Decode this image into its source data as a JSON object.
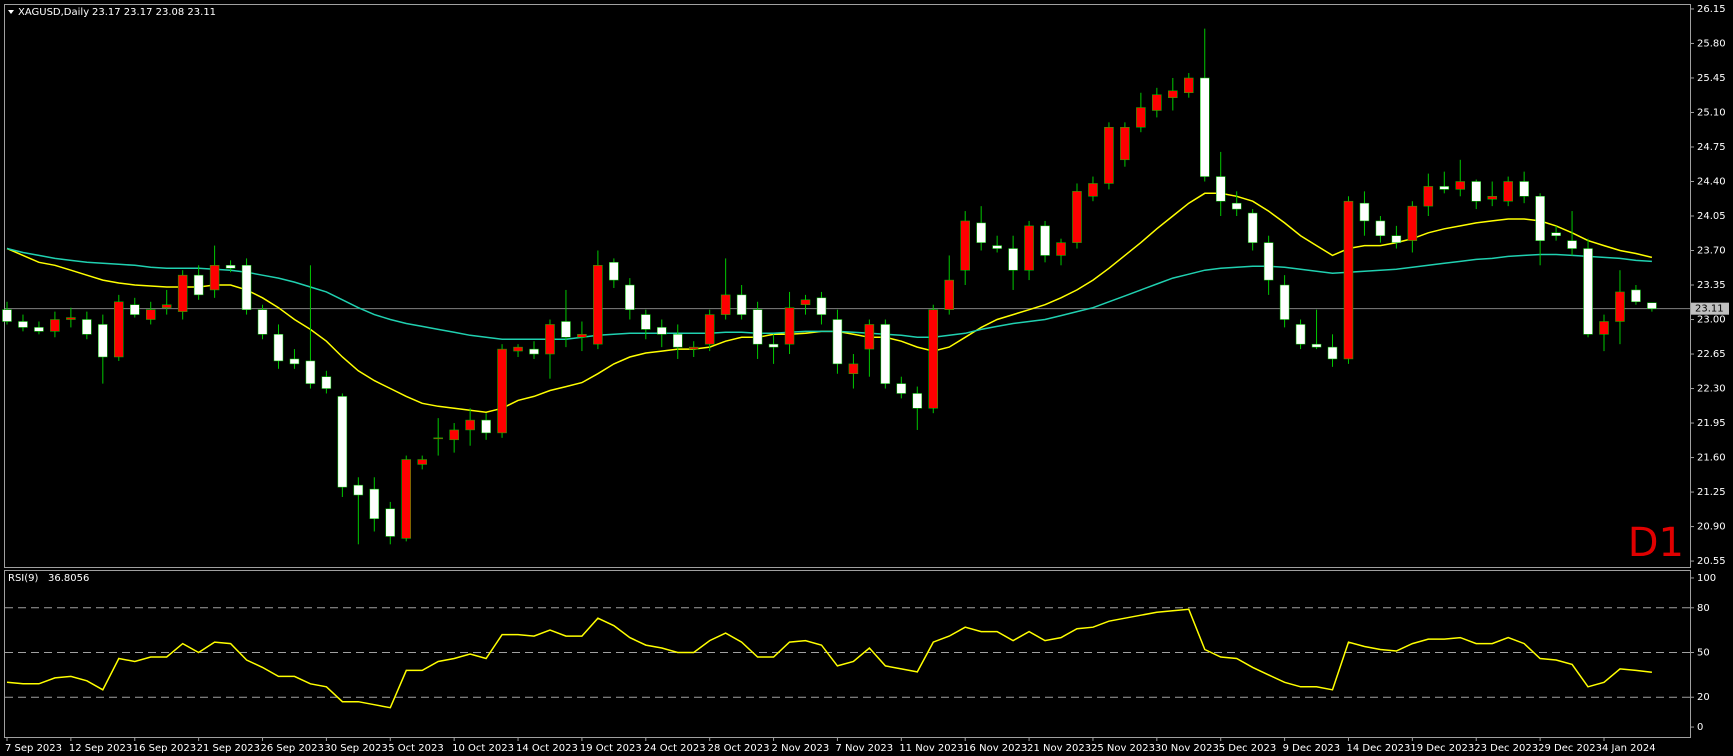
{
  "chart_data": [
    {
      "type": "candlestick",
      "title": "XAGUSD,Daily",
      "subtitle": "23.17 23.17 23.08 23.11",
      "annotation": "D1",
      "categories": [
        "7 Sep 2023",
        null,
        null,
        null,
        "12 Sep 2023",
        null,
        null,
        null,
        "16 Sep 2023",
        null,
        null,
        null,
        "21 Sep 2023",
        null,
        null,
        null,
        "26 Sep 2023",
        null,
        null,
        null,
        "30 Sep 2023",
        null,
        null,
        null,
        "5 Oct 2023",
        null,
        null,
        null,
        "10 Oct 2023",
        null,
        null,
        null,
        "14 Oct 2023",
        null,
        null,
        null,
        "19 Oct 2023",
        null,
        null,
        null,
        "24 Oct 2023",
        null,
        null,
        null,
        "28 Oct 2023",
        null,
        null,
        null,
        "2 Nov 2023",
        null,
        null,
        null,
        "7 Nov 2023",
        null,
        null,
        null,
        "11 Nov 2023",
        null,
        null,
        null,
        "16 Nov 2023",
        null,
        null,
        null,
        "21 Nov 2023",
        null,
        null,
        null,
        "25 Nov 2023",
        null,
        null,
        null,
        "30 Nov 2023",
        null,
        null,
        null,
        "5 Dec 2023",
        null,
        null,
        null,
        "9 Dec 2023",
        null,
        null,
        null,
        "14 Dec 2023",
        null,
        null,
        null,
        "19 Dec 2023",
        null,
        null,
        null,
        "23 Dec 2023",
        null,
        null,
        null,
        "29 Dec 2023",
        null,
        null,
        null,
        "4 Jan 2024",
        null,
        null,
        null
      ],
      "open": [
        23.1,
        22.98,
        22.92,
        22.88,
        23.0,
        23.0,
        22.95,
        22.62,
        23.15,
        23.0,
        23.12,
        23.08,
        23.45,
        23.3,
        23.55,
        23.55,
        23.1,
        22.85,
        22.6,
        22.58,
        22.42,
        22.22,
        21.32,
        21.28,
        21.08,
        20.78,
        21.53,
        21.8,
        21.78,
        21.88,
        21.98,
        21.85,
        22.68,
        22.7,
        22.65,
        22.98,
        22.82,
        22.75,
        23.58,
        23.35,
        23.05,
        22.92,
        22.85,
        22.7,
        22.75,
        23.05,
        23.25,
        23.1,
        22.75,
        22.75,
        23.15,
        23.22,
        23.0,
        22.45,
        22.7,
        22.95,
        22.35,
        22.25,
        22.1,
        23.1,
        23.5,
        23.98,
        23.75,
        23.72,
        23.5,
        23.95,
        23.65,
        23.78,
        24.25,
        24.38,
        24.62,
        24.95,
        25.12,
        25.25,
        25.3,
        25.45,
        24.45,
        24.18,
        24.08,
        23.78,
        23.35,
        22.95,
        22.75,
        22.72,
        22.6,
        24.18,
        24.0,
        23.85,
        23.8,
        24.15,
        24.35,
        24.32,
        24.4,
        24.22,
        24.2,
        24.4,
        24.25,
        23.88,
        23.8,
        23.72,
        22.85,
        22.98,
        23.3,
        23.17
      ],
      "high": [
        23.18,
        23.05,
        22.98,
        23.08,
        23.12,
        23.08,
        23.05,
        23.25,
        23.22,
        23.18,
        23.3,
        23.5,
        23.55,
        23.75,
        23.6,
        23.62,
        23.15,
        22.95,
        22.7,
        23.55,
        22.48,
        22.25,
        21.4,
        21.4,
        21.15,
        21.62,
        21.62,
        22.0,
        21.95,
        22.1,
        22.05,
        22.75,
        22.75,
        22.78,
        23.0,
        23.3,
        22.98,
        23.7,
        23.62,
        23.42,
        23.1,
        23.0,
        22.95,
        22.78,
        23.1,
        23.62,
        23.35,
        23.18,
        22.85,
        23.28,
        23.25,
        23.28,
        23.1,
        22.65,
        23.0,
        23.0,
        22.42,
        22.32,
        23.15,
        23.65,
        24.1,
        24.15,
        23.85,
        23.85,
        24.0,
        24.0,
        23.82,
        24.38,
        24.45,
        25.0,
        25.0,
        25.3,
        25.35,
        25.45,
        25.5,
        25.95,
        24.7,
        24.3,
        24.12,
        23.85,
        23.45,
        23.0,
        23.1,
        22.85,
        24.25,
        24.3,
        24.05,
        23.95,
        24.2,
        24.48,
        24.5,
        24.62,
        24.42,
        24.4,
        24.45,
        24.5,
        24.28,
        23.95,
        24.1,
        23.82,
        23.05,
        23.5,
        23.35,
        23.17
      ],
      "low": [
        22.95,
        22.88,
        22.85,
        22.82,
        22.92,
        22.8,
        22.35,
        22.58,
        23.02,
        22.95,
        23.05,
        23.0,
        23.2,
        23.22,
        23.48,
        23.05,
        22.8,
        22.5,
        22.5,
        22.3,
        22.25,
        21.2,
        20.72,
        20.85,
        20.72,
        20.75,
        21.48,
        21.62,
        21.65,
        21.72,
        21.78,
        21.8,
        22.62,
        22.6,
        22.4,
        22.72,
        22.68,
        22.7,
        23.32,
        23.0,
        22.8,
        22.72,
        22.6,
        22.62,
        22.68,
        23.0,
        23.0,
        22.6,
        22.55,
        22.65,
        23.05,
        22.95,
        22.45,
        22.3,
        22.42,
        22.3,
        22.2,
        21.88,
        22.05,
        23.05,
        23.35,
        23.7,
        23.68,
        23.3,
        23.4,
        23.58,
        23.55,
        23.72,
        24.2,
        24.32,
        24.55,
        24.9,
        25.05,
        25.12,
        25.25,
        24.4,
        24.05,
        24.05,
        23.7,
        23.25,
        22.92,
        22.7,
        22.7,
        22.52,
        22.55,
        23.85,
        23.78,
        23.72,
        23.68,
        24.05,
        24.28,
        24.25,
        24.12,
        24.15,
        24.15,
        24.18,
        23.55,
        23.8,
        23.65,
        22.82,
        22.68,
        22.75,
        23.15,
        23.08
      ],
      "close": [
        22.98,
        22.92,
        22.88,
        23.0,
        23.02,
        22.85,
        22.62,
        23.18,
        23.05,
        23.1,
        23.15,
        23.45,
        23.25,
        23.55,
        23.52,
        23.1,
        22.85,
        22.58,
        22.55,
        22.35,
        22.3,
        21.3,
        21.22,
        20.98,
        20.8,
        21.58,
        21.58,
        21.8,
        21.88,
        21.98,
        21.85,
        22.7,
        22.72,
        22.65,
        22.95,
        22.82,
        22.85,
        23.55,
        23.4,
        23.1,
        22.9,
        22.85,
        22.72,
        22.72,
        23.05,
        23.25,
        23.05,
        22.75,
        22.72,
        23.12,
        23.2,
        23.05,
        22.55,
        22.55,
        22.95,
        22.35,
        22.25,
        22.1,
        23.1,
        23.4,
        24.0,
        23.78,
        23.72,
        23.5,
        23.95,
        23.65,
        23.78,
        24.3,
        24.38,
        24.95,
        24.95,
        25.15,
        25.28,
        25.32,
        25.45,
        24.45,
        24.2,
        24.12,
        23.78,
        23.4,
        23.0,
        22.75,
        22.72,
        22.6,
        24.2,
        24.0,
        23.85,
        23.78,
        24.15,
        24.35,
        24.32,
        24.4,
        24.2,
        24.25,
        24.4,
        24.25,
        23.8,
        23.85,
        23.72,
        22.85,
        22.98,
        23.28,
        23.18,
        23.11
      ],
      "up_color": "#ff0000",
      "down_color": "#ffffff",
      "wick_color": "#00c800",
      "lines": [
        {
          "color": "#ffff00",
          "values": [
            23.72,
            23.65,
            23.58,
            23.55,
            23.5,
            23.45,
            23.4,
            23.37,
            23.35,
            23.34,
            23.33,
            23.33,
            23.33,
            23.35,
            23.35,
            23.3,
            23.22,
            23.12,
            23.0,
            22.9,
            22.78,
            22.62,
            22.48,
            22.38,
            22.3,
            22.22,
            22.15,
            22.12,
            22.1,
            22.08,
            22.06,
            22.1,
            22.18,
            22.22,
            22.28,
            22.32,
            22.36,
            22.45,
            22.55,
            22.62,
            22.66,
            22.68,
            22.7,
            22.7,
            22.72,
            22.78,
            22.82,
            22.82,
            22.85,
            22.85,
            22.86,
            22.88,
            22.88,
            22.85,
            22.82,
            22.82,
            22.78,
            22.72,
            22.68,
            22.72,
            22.82,
            22.92,
            23.0,
            23.05,
            23.1,
            23.15,
            23.22,
            23.3,
            23.4,
            23.52,
            23.65,
            23.78,
            23.92,
            24.05,
            24.18,
            24.28,
            24.28,
            24.25,
            24.2,
            24.1,
            23.98,
            23.85,
            23.75,
            23.65,
            23.72,
            23.75,
            23.75,
            23.78,
            23.82,
            23.88,
            23.92,
            23.95,
            23.98,
            24.0,
            24.02,
            24.02,
            24.0,
            23.95,
            23.88,
            23.8,
            23.75,
            23.7,
            23.67,
            23.63
          ]
        },
        {
          "color": "#20d0b0",
          "values": [
            23.72,
            23.68,
            23.65,
            23.62,
            23.6,
            23.58,
            23.57,
            23.56,
            23.55,
            23.53,
            23.52,
            23.52,
            23.52,
            23.51,
            23.5,
            23.48,
            23.45,
            23.42,
            23.38,
            23.33,
            23.28,
            23.2,
            23.12,
            23.05,
            23.0,
            22.96,
            22.93,
            22.9,
            22.87,
            22.84,
            22.82,
            22.8,
            22.8,
            22.8,
            22.8,
            22.8,
            22.82,
            22.84,
            22.85,
            22.86,
            22.86,
            22.86,
            22.86,
            22.86,
            22.86,
            22.87,
            22.87,
            22.86,
            22.86,
            22.87,
            22.88,
            22.88,
            22.88,
            22.87,
            22.86,
            22.85,
            22.84,
            22.82,
            22.82,
            22.84,
            22.86,
            22.9,
            22.93,
            22.96,
            22.98,
            23.0,
            23.04,
            23.08,
            23.12,
            23.18,
            23.24,
            23.3,
            23.36,
            23.42,
            23.46,
            23.5,
            23.52,
            23.53,
            23.54,
            23.54,
            23.53,
            23.51,
            23.49,
            23.47,
            23.48,
            23.49,
            23.5,
            23.51,
            23.53,
            23.55,
            23.57,
            23.59,
            23.61,
            23.62,
            23.64,
            23.65,
            23.66,
            23.66,
            23.65,
            23.64,
            23.63,
            23.62,
            23.6,
            23.59
          ]
        }
      ],
      "last_price": 23.11,
      "last_price_color": "#808080",
      "ylim": [
        20.5,
        26.18
      ],
      "yticks": [
        26.15,
        {
          "value": 25.8,
          "label": "25.80"
        },
        25.45,
        {
          "value": 25.1,
          "label": "25.10"
        },
        24.75,
        {
          "value": 24.4,
          "label": "24.40"
        },
        24.05,
        {
          "value": 23.7,
          "label": "23.70"
        },
        23.35,
        {
          "value": 23,
          "label": "23.00"
        },
        22.65,
        {
          "value": 22.3,
          "label": "22.30"
        },
        21.95,
        {
          "value": 21.6,
          "label": "21.60"
        },
        21.25,
        {
          "value": 20.9,
          "label": "20.90"
        },
        20.55
      ],
      "grid": false
    },
    {
      "type": "line",
      "title": "RSI(9)",
      "current_value": 36.8056,
      "color": "#ffff00",
      "values": [
        30,
        29,
        29,
        33,
        34,
        31,
        25,
        46,
        44,
        47,
        47,
        56,
        50,
        57,
        56,
        45,
        40,
        34,
        34,
        29,
        27,
        17,
        17,
        15,
        13,
        38,
        38,
        44,
        46,
        49,
        46,
        62,
        62,
        61,
        65,
        61,
        61,
        73,
        68,
        60,
        55,
        53,
        50,
        50,
        58,
        63,
        57,
        47,
        47,
        57,
        58,
        55,
        41,
        44,
        53,
        41,
        39,
        37,
        57,
        61,
        67,
        64,
        64,
        58,
        64,
        58,
        60,
        66,
        67,
        71,
        73,
        75,
        77,
        78,
        79,
        52,
        47,
        46,
        40,
        35,
        30,
        27,
        27,
        25,
        57,
        54,
        52,
        51,
        56,
        59,
        59,
        60,
        56,
        56,
        60,
        56,
        46,
        45,
        42,
        27,
        30,
        39,
        38,
        36.8056
      ],
      "ylim": [
        -6,
        104
      ],
      "yticks": [
        0,
        20,
        50,
        80,
        100
      ],
      "levels": [
        20,
        50,
        80
      ],
      "grid": false
    }
  ]
}
